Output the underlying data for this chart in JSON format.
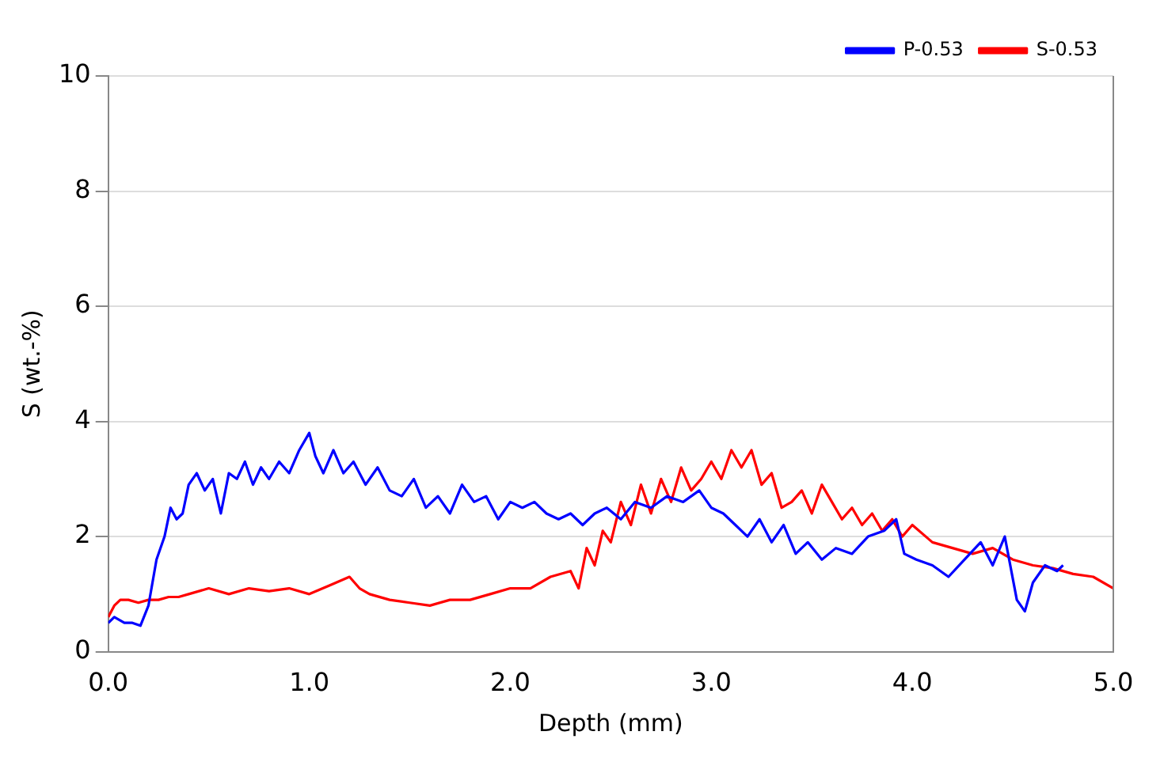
{
  "chart_data": {
    "type": "line",
    "xlabel": "Depth (mm)",
    "ylabel": "S (wt.-%)",
    "xlim": [
      0,
      5
    ],
    "xticks": [
      {
        "value": 0,
        "label": "0.0"
      },
      {
        "value": 1,
        "label": "1.0"
      },
      {
        "value": 2,
        "label": "2.0"
      },
      {
        "value": 3,
        "label": "3.0"
      },
      {
        "value": 4,
        "label": "4.0"
      },
      {
        "value": 5,
        "label": "5.0"
      }
    ],
    "ylim": [
      0,
      10
    ],
    "yticks": [
      0,
      2,
      4,
      6,
      8,
      10
    ],
    "grid": "y",
    "legend": "top right",
    "marker": "none",
    "series": [
      {
        "name": "P-0.53",
        "color": "#0000ff",
        "x": [
          0,
          0.03,
          0.08,
          0.12,
          0.16,
          0.2,
          0.24,
          0.28,
          0.31,
          0.34,
          0.37,
          0.4,
          0.44,
          0.48,
          0.52,
          0.56,
          0.6,
          0.64,
          0.68,
          0.72,
          0.76,
          0.8,
          0.85,
          0.9,
          0.95,
          1.0,
          1.03,
          1.07,
          1.12,
          1.17,
          1.22,
          1.28,
          1.34,
          1.4,
          1.46,
          1.52,
          1.58,
          1.64,
          1.7,
          1.76,
          1.82,
          1.88,
          1.94,
          2.0,
          2.06,
          2.12,
          2.18,
          2.24,
          2.3,
          2.36,
          2.42,
          2.48,
          2.55,
          2.62,
          2.7,
          2.78,
          2.86,
          2.94,
          3.0,
          3.06,
          3.12,
          3.18,
          3.24,
          3.3,
          3.36,
          3.42,
          3.48,
          3.55,
          3.62,
          3.7,
          3.78,
          3.86,
          3.92,
          3.96,
          4.02,
          4.1,
          4.18,
          4.26,
          4.34,
          4.4,
          4.46,
          4.52,
          4.56,
          4.6,
          4.66,
          4.72,
          4.75
        ],
        "values": [
          0.5,
          0.6,
          0.5,
          0.5,
          0.45,
          0.8,
          1.6,
          2.0,
          2.5,
          2.3,
          2.4,
          2.9,
          3.1,
          2.8,
          3.0,
          2.4,
          3.1,
          3.0,
          3.3,
          2.9,
          3.2,
          3.0,
          3.3,
          3.1,
          3.5,
          3.8,
          3.4,
          3.1,
          3.5,
          3.1,
          3.3,
          2.9,
          3.2,
          2.8,
          2.7,
          3.0,
          2.5,
          2.7,
          2.4,
          2.9,
          2.6,
          2.7,
          2.3,
          2.6,
          2.5,
          2.6,
          2.4,
          2.3,
          2.4,
          2.2,
          2.4,
          2.5,
          2.3,
          2.6,
          2.5,
          2.7,
          2.6,
          2.8,
          2.5,
          2.4,
          2.2,
          2.0,
          2.3,
          1.9,
          2.2,
          1.7,
          1.9,
          1.6,
          1.8,
          1.7,
          2.0,
          2.1,
          2.3,
          1.7,
          1.6,
          1.5,
          1.3,
          1.6,
          1.9,
          1.5,
          2.0,
          0.9,
          0.7,
          1.2,
          1.5,
          1.4,
          1.5
        ]
      },
      {
        "name": "S-0.53",
        "color": "#ff0000",
        "x": [
          0,
          0.03,
          0.06,
          0.1,
          0.15,
          0.2,
          0.25,
          0.3,
          0.35,
          0.4,
          0.5,
          0.6,
          0.7,
          0.8,
          0.9,
          1.0,
          1.1,
          1.2,
          1.25,
          1.3,
          1.4,
          1.5,
          1.6,
          1.7,
          1.8,
          1.9,
          2.0,
          2.1,
          2.2,
          2.3,
          2.34,
          2.38,
          2.42,
          2.46,
          2.5,
          2.55,
          2.6,
          2.65,
          2.7,
          2.75,
          2.8,
          2.85,
          2.9,
          2.95,
          3.0,
          3.05,
          3.1,
          3.15,
          3.2,
          3.25,
          3.3,
          3.35,
          3.4,
          3.45,
          3.5,
          3.55,
          3.6,
          3.65,
          3.7,
          3.75,
          3.8,
          3.85,
          3.9,
          3.95,
          4.0,
          4.1,
          4.2,
          4.3,
          4.4,
          4.5,
          4.6,
          4.7,
          4.8,
          4.9,
          5.0
        ],
        "values": [
          0.6,
          0.8,
          0.9,
          0.9,
          0.85,
          0.9,
          0.9,
          0.95,
          0.95,
          1.0,
          1.1,
          1.0,
          1.1,
          1.05,
          1.1,
          1.0,
          1.15,
          1.3,
          1.1,
          1.0,
          0.9,
          0.85,
          0.8,
          0.9,
          0.9,
          1.0,
          1.1,
          1.1,
          1.3,
          1.4,
          1.1,
          1.8,
          1.5,
          2.1,
          1.9,
          2.6,
          2.2,
          2.9,
          2.4,
          3.0,
          2.6,
          3.2,
          2.8,
          3.0,
          3.3,
          3.0,
          3.5,
          3.2,
          3.5,
          2.9,
          3.1,
          2.5,
          2.6,
          2.8,
          2.4,
          2.9,
          2.6,
          2.3,
          2.5,
          2.2,
          2.4,
          2.1,
          2.3,
          2.0,
          2.2,
          1.9,
          1.8,
          1.7,
          1.8,
          1.6,
          1.5,
          1.45,
          1.35,
          1.3,
          1.1
        ]
      }
    ]
  }
}
